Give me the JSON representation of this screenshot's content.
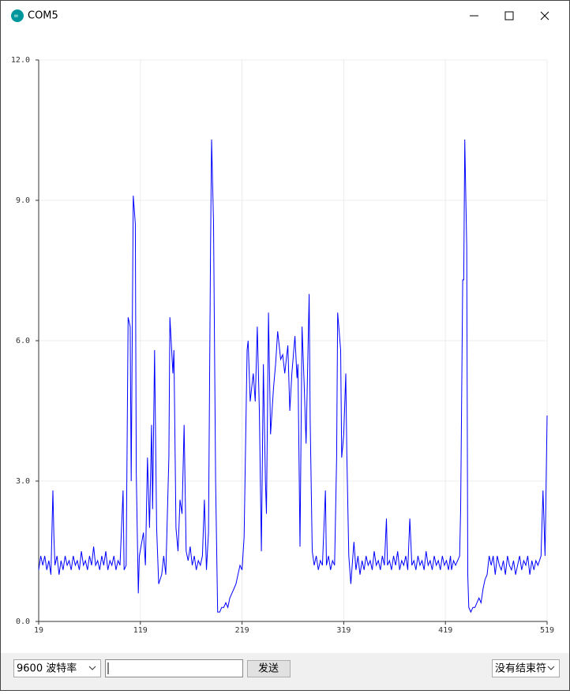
{
  "window": {
    "title": "COM5"
  },
  "chart_data": {
    "type": "line",
    "color": "#0000ff",
    "grid": true,
    "xlim": [
      19,
      519
    ],
    "xticks": [
      19,
      119,
      219,
      319,
      419,
      519
    ],
    "ylim": [
      0,
      12
    ],
    "yticks": [
      {
        "value": 0,
        "label": "0.0"
      },
      {
        "value": 3,
        "label": "3.0"
      },
      {
        "value": 6,
        "label": "6.0"
      },
      {
        "value": 9,
        "label": "9.0"
      },
      {
        "value": 12,
        "label": "12.0"
      }
    ],
    "x": [
      19,
      21,
      23,
      25,
      27,
      29,
      31,
      33,
      34,
      35,
      37,
      39,
      41,
      43,
      45,
      47,
      49,
      51,
      53,
      55,
      57,
      59,
      61,
      63,
      65,
      67,
      69,
      71,
      73,
      75,
      77,
      79,
      81,
      83,
      85,
      87,
      89,
      91,
      93,
      95,
      97,
      99,
      102,
      103,
      105,
      107,
      109,
      110,
      112,
      114,
      115,
      117,
      118,
      122,
      124,
      126,
      128,
      130,
      131,
      133,
      135,
      137,
      140,
      142,
      144,
      147,
      148,
      151,
      152,
      154,
      156,
      158,
      160,
      162,
      164,
      166,
      168,
      170,
      172,
      174,
      176,
      178,
      180,
      182,
      184,
      186,
      188,
      189,
      191,
      193,
      195,
      197,
      199,
      201,
      203,
      205,
      207,
      209,
      211,
      213,
      215,
      217,
      219,
      221,
      224,
      225,
      227,
      230,
      232,
      234,
      236,
      238,
      240,
      242,
      243,
      245,
      247,
      250,
      252,
      254,
      257,
      259,
      261,
      264,
      266,
      268,
      271,
      273,
      274,
      276,
      278,
      280,
      282,
      285,
      286,
      288,
      290,
      292,
      294,
      296,
      298,
      301,
      302,
      304,
      306,
      308,
      310,
      312,
      313,
      316,
      317,
      319,
      321,
      322,
      324,
      326,
      329,
      331,
      333,
      335,
      337,
      339,
      341,
      343,
      345,
      347,
      349,
      351,
      353,
      355,
      357,
      359,
      361,
      362,
      364,
      366,
      368,
      370,
      372,
      374,
      376,
      378,
      380,
      382,
      384,
      386,
      388,
      390,
      392,
      394,
      396,
      398,
      400,
      402,
      404,
      406,
      408,
      410,
      412,
      414,
      416,
      418,
      420,
      422,
      424,
      425,
      427,
      429,
      433,
      434,
      436,
      437,
      438,
      440,
      441,
      442,
      444,
      446,
      448,
      450,
      452,
      454,
      456,
      458,
      460,
      462,
      464,
      466,
      468,
      470,
      472,
      474,
      476,
      478,
      480,
      482,
      484,
      486,
      488,
      490,
      492,
      494,
      496,
      498,
      500,
      502,
      504,
      506,
      508,
      510,
      513,
      515,
      517,
      519
    ],
    "values": [
      1.1,
      1.4,
      1.2,
      1.4,
      1.1,
      1.3,
      1.0,
      2.8,
      1.8,
      1.2,
      1.4,
      1.0,
      1.3,
      1.1,
      1.4,
      1.2,
      1.3,
      1.1,
      1.4,
      1.2,
      1.3,
      1.1,
      1.5,
      1.2,
      1.3,
      1.1,
      1.4,
      1.2,
      1.6,
      1.2,
      1.3,
      1.1,
      1.4,
      1.2,
      1.5,
      1.1,
      1.3,
      1.2,
      1.4,
      1.1,
      1.3,
      1.2,
      2.8,
      1.1,
      1.2,
      6.5,
      6.3,
      3.0,
      9.1,
      8.5,
      3.2,
      0.6,
      1.4,
      1.9,
      1.2,
      3.5,
      2.0,
      4.2,
      2.4,
      5.8,
      2.0,
      0.8,
      1.0,
      1.4,
      1.0,
      3.5,
      6.5,
      5.3,
      5.8,
      2.0,
      1.5,
      2.6,
      2.3,
      4.2,
      1.5,
      1.3,
      1.6,
      1.2,
      1.4,
      1.1,
      1.3,
      1.2,
      1.4,
      2.6,
      1.1,
      1.9,
      8.0,
      10.3,
      8.5,
      3.0,
      0.2,
      0.2,
      0.3,
      0.3,
      0.4,
      0.3,
      0.5,
      0.6,
      0.7,
      0.8,
      1.0,
      1.2,
      1.1,
      1.8,
      5.8,
      6.0,
      4.7,
      5.3,
      4.7,
      6.3,
      4.5,
      1.5,
      5.5,
      3.0,
      2.3,
      6.6,
      4.0,
      5.0,
      5.5,
      6.2,
      5.6,
      5.7,
      5.3,
      5.9,
      4.5,
      5.3,
      6.1,
      5.2,
      5.5,
      1.6,
      6.3,
      5.1,
      3.8,
      7.0,
      4.3,
      1.5,
      1.2,
      1.4,
      1.1,
      1.3,
      1.2,
      2.8,
      1.2,
      1.4,
      1.1,
      1.3,
      1.2,
      3.5,
      6.6,
      5.8,
      3.5,
      4.0,
      5.3,
      3.6,
      1.4,
      0.8,
      1.7,
      1.1,
      1.4,
      1.0,
      1.3,
      1.1,
      1.4,
      1.2,
      1.3,
      1.1,
      1.5,
      1.2,
      1.3,
      1.1,
      1.4,
      1.2,
      2.2,
      1.2,
      1.3,
      1.1,
      1.4,
      1.2,
      1.5,
      1.1,
      1.3,
      1.2,
      1.4,
      1.1,
      2.2,
      1.2,
      1.3,
      1.1,
      1.4,
      1.2,
      1.3,
      1.1,
      1.5,
      1.2,
      1.3,
      1.1,
      1.4,
      1.2,
      1.3,
      1.1,
      1.4,
      1.2,
      1.3,
      1.1,
      1.4,
      1.1,
      1.3,
      1.2,
      1.4,
      2.4,
      7.3,
      7.3,
      10.3,
      8.0,
      1.0,
      0.3,
      0.2,
      0.3,
      0.3,
      0.4,
      0.5,
      0.4,
      0.7,
      0.9,
      1.0,
      1.4,
      1.2,
      1.4,
      1.0,
      1.4,
      1.2,
      1.1,
      1.3,
      1.0,
      1.4,
      1.2,
      1.1,
      1.3,
      1.0,
      1.2,
      1.4,
      1.1,
      1.3,
      1.2,
      1.4,
      1.0,
      1.3,
      1.1,
      1.3,
      1.2,
      1.4,
      2.8,
      1.4,
      4.4
    ]
  },
  "toolbar": {
    "baud": "9600 波特率",
    "send": "发送",
    "line_ending": "没有结束符"
  }
}
